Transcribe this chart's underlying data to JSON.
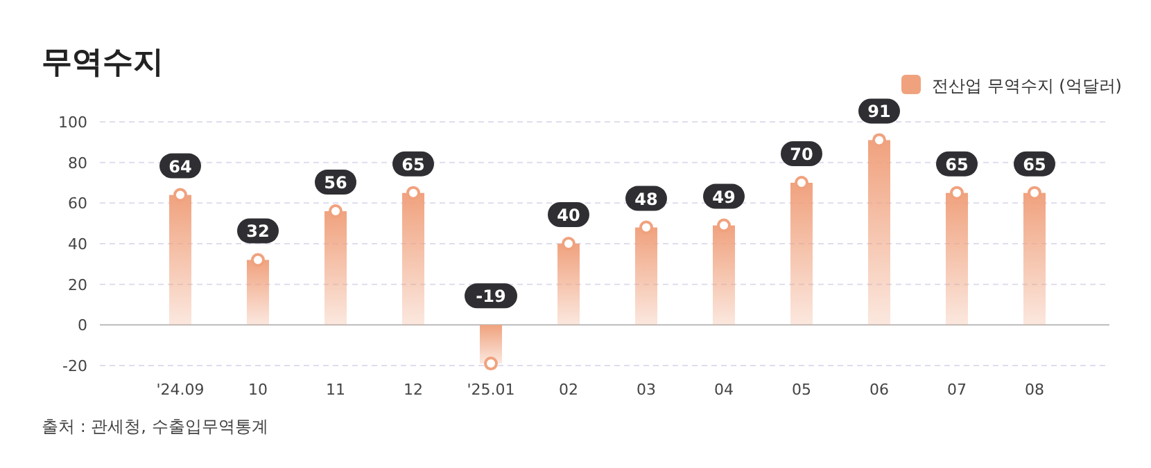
{
  "chart_data": {
    "type": "bar",
    "title": "무역수지",
    "categories": [
      "'24.09",
      "10",
      "11",
      "12",
      "'25.01",
      "02",
      "03",
      "04",
      "05",
      "06",
      "07",
      "08"
    ],
    "series": [
      {
        "name": "전산업 무역수지 (억달러)",
        "color": "#f0a27e",
        "values": [
          64,
          32,
          56,
          65,
          -19,
          40,
          48,
          49,
          70,
          91,
          65,
          65
        ]
      }
    ],
    "ylim": [
      -20,
      100
    ],
    "yticks": [
      -20,
      0,
      20,
      40,
      60,
      80,
      100
    ],
    "grid": "y",
    "legend": "top right",
    "marker": "circle",
    "data_labels": true,
    "annotations": [
      "출처 : 관세청, 수출입무역통계"
    ]
  }
}
